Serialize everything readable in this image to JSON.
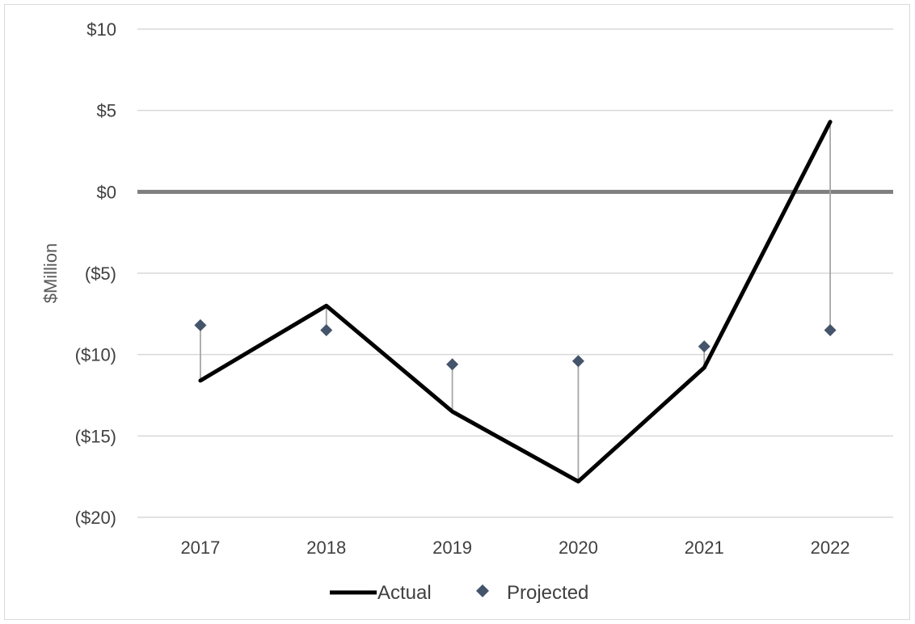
{
  "chart_data": {
    "type": "line",
    "title": "",
    "xlabel": "",
    "ylabel": "$Million",
    "categories": [
      "2017",
      "2018",
      "2019",
      "2020",
      "2021",
      "2022"
    ],
    "ylim": [
      -20,
      10
    ],
    "yticks": [
      10,
      5,
      0,
      -5,
      -10,
      -15,
      -20
    ],
    "ytick_labels": [
      "$10",
      "$5",
      "$0",
      "($5)",
      "($10)",
      "($15)",
      "($20)"
    ],
    "grid": true,
    "legend_position": "bottom",
    "series": [
      {
        "name": "Actual",
        "mark": "line",
        "color": "#000000",
        "values": [
          -11.6,
          -7.0,
          -13.5,
          -17.8,
          -10.8,
          4.3
        ]
      },
      {
        "name": "Projected",
        "mark": "diamond",
        "color": "#44546a",
        "values": [
          -8.2,
          -8.5,
          -10.6,
          -10.4,
          -9.5,
          -8.5
        ]
      }
    ],
    "connector_lines": "high-low lines between Actual and Projected",
    "zero_line_color": "#7f7f7f",
    "connector_color": "#a6a6a6",
    "grid_color": "#d9d9d9",
    "marker_color": "#44546a"
  }
}
